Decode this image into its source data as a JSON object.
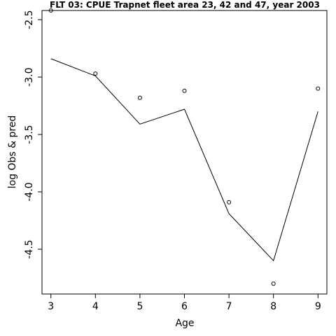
{
  "chart_data": {
    "type": "scatter",
    "title": "FLT 03: CPUE Trapnet fleet area 23, 42 and 47, year 2003",
    "xlabel": "Age",
    "ylabel": "log Obs & pred",
    "x_ticks": [
      "3",
      "4",
      "5",
      "6",
      "7",
      "8",
      "9"
    ],
    "y_ticks": [
      "-2.5",
      "-3.0",
      "-3.5",
      "-4.0",
      "-4.5"
    ],
    "xlim": [
      2.8,
      9.2
    ],
    "ylim": [
      -4.89,
      -2.42
    ],
    "grid": false,
    "legend": "none",
    "series": [
      {
        "style": "points",
        "x": [
          3,
          4,
          5,
          6,
          7,
          8,
          9
        ],
        "y": [
          -2.42,
          -2.97,
          -3.18,
          -3.12,
          -4.09,
          -4.8,
          -3.1
        ]
      },
      {
        "style": "line",
        "x": [
          3,
          4,
          5,
          6,
          7,
          8,
          9
        ],
        "y": [
          -2.84,
          -2.99,
          -3.41,
          -3.28,
          -4.19,
          -4.6,
          -3.3
        ]
      }
    ]
  }
}
